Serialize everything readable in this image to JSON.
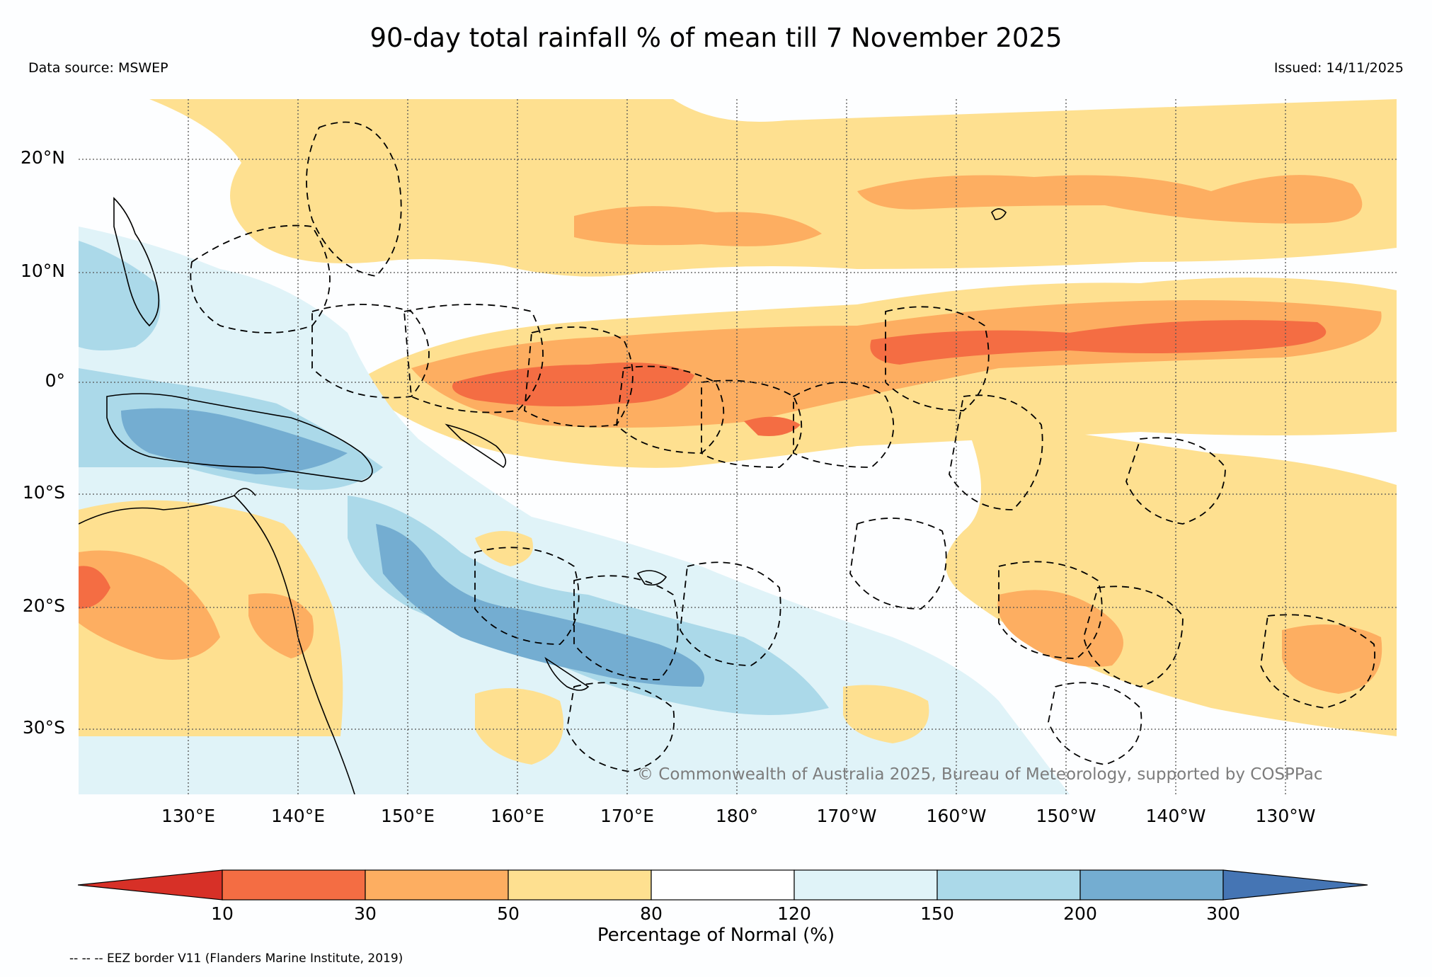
{
  "title": "90-day total rainfall % of mean till 7 November 2025",
  "data_source": "Data source: MSWEP",
  "issued": "Issued: 14/11/2025",
  "copyright": "© Commonwealth of Australia 2025, Bureau of Meteorology, supported by COSPPac",
  "footnote": "-- -- -- EEZ border V11 (Flanders Marine Institute, 2019)",
  "latitude_labels": [
    "20°N",
    "10°N",
    "0°",
    "10°S",
    "20°S",
    "30°S"
  ],
  "longitude_labels": [
    "130°E",
    "140°E",
    "150°E",
    "160°E",
    "170°E",
    "180°",
    "170°W",
    "160°W",
    "150°W",
    "140°W",
    "130°W"
  ],
  "colorbar": {
    "label": "Percentage of Normal (%)",
    "ticks": [
      "10",
      "30",
      "50",
      "80",
      "120",
      "150",
      "200",
      "300"
    ],
    "colors": [
      "#d73027",
      "#f46d43",
      "#fdae61",
      "#fee090",
      "#ffffff",
      "#e0f3f8",
      "#abd9e9",
      "#74add1",
      "#4575b4"
    ]
  },
  "colors": {
    "dry_severe": "#f46d43",
    "dry_moderate": "#fdae61",
    "dry_light": "#fee090",
    "wet_light": "#e0f3f8",
    "wet_moderate": "#abd9e9",
    "wet_heavy": "#74add1",
    "wet_extreme": "#4575b4"
  }
}
